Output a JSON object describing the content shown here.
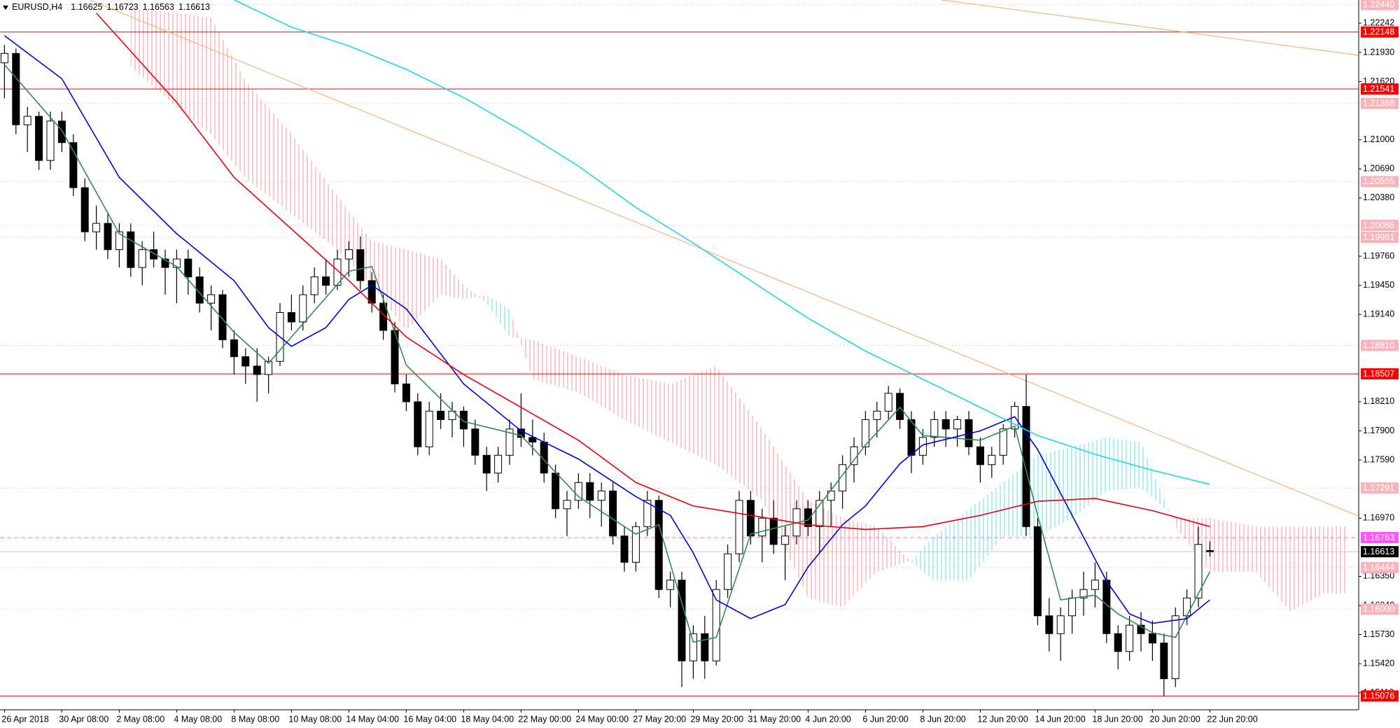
{
  "chart_data": {
    "type": "candlestick",
    "title": "EURUSD,H4",
    "ylim": [
      1.14929,
      1.22489
    ],
    "yticks": [
      1.22242,
      {
        "value": 1.2193,
        "label": "1.21930"
      },
      {
        "value": 1.2162,
        "label": "1.21620"
      },
      {
        "value": 1.21,
        "label": "1.21000"
      },
      {
        "value": 1.2069,
        "label": "1.20690"
      },
      {
        "value": 1.2038,
        "label": "1.20380"
      },
      {
        "value": 1.1976,
        "label": "1.19760"
      },
      {
        "value": 1.1945,
        "label": "1.19450"
      },
      {
        "value": 1.1914,
        "label": "1.19140"
      },
      {
        "value": 1.1821,
        "label": "1.18210"
      },
      {
        "value": 1.179,
        "label": "1.17900"
      },
      {
        "value": 1.1759,
        "label": "1.17590"
      },
      {
        "value": 1.1697,
        "label": "1.16970"
      },
      {
        "value": 1.1635,
        "label": "1.16350"
      },
      {
        "value": 1.1604,
        "label": "1.16040"
      },
      {
        "value": 1.1573,
        "label": "1.15730"
      },
      {
        "value": 1.1542,
        "label": "1.15420"
      },
      {
        "value": 1.1511,
        "label": "1.15110"
      }
    ],
    "categories": [
      "26 Apr 2018",
      null,
      null,
      null,
      null,
      "30 Apr 08:00",
      null,
      null,
      null,
      null,
      "2 May 08:00",
      null,
      null,
      null,
      null,
      "4 May 08:00",
      null,
      null,
      null,
      null,
      "8 May 08:00",
      null,
      null,
      null,
      null,
      "10 May 08:00",
      null,
      null,
      null,
      null,
      "14 May 04:00",
      null,
      null,
      null,
      null,
      "16 May 04:00",
      null,
      null,
      null,
      null,
      "18 May 04:00",
      null,
      null,
      null,
      null,
      "22 May 00:00",
      null,
      null,
      null,
      null,
      "24 May 00:00",
      null,
      null,
      null,
      null,
      "27 May 20:00",
      null,
      null,
      null,
      null,
      "29 May 20:00",
      null,
      null,
      null,
      null,
      "31 May 20:00",
      null,
      null,
      null,
      null,
      "4 Jun 20:00",
      null,
      null,
      null,
      null,
      "6 Jun 20:00",
      null,
      null,
      null,
      null,
      "8 Jun 20:00",
      null,
      null,
      null,
      null,
      "12 Jun 20:00",
      null,
      null,
      null,
      null,
      "14 Jun 20:00",
      null,
      null,
      null,
      null,
      "18 Jun 20:00",
      null,
      null,
      null,
      null,
      "20 Jun 20:00",
      null,
      null,
      null,
      null,
      "22 Jun 20:00"
    ],
    "candles": [
      [
        1.2182,
        1.2201,
        1.2144,
        1.2192
      ],
      [
        1.2192,
        1.2197,
        1.2106,
        1.2116
      ],
      [
        1.2116,
        1.2135,
        1.2087,
        1.2125
      ],
      [
        1.2125,
        1.213,
        1.2068,
        1.2078
      ],
      [
        1.2078,
        1.213,
        1.2068,
        1.212
      ],
      [
        1.212,
        1.213,
        1.2087,
        1.2097
      ],
      [
        1.2097,
        1.2106,
        1.204,
        1.2049
      ],
      [
        1.2049,
        1.2059,
        1.1992,
        1.2002
      ],
      [
        1.2002,
        1.203,
        1.1983,
        1.2011
      ],
      [
        1.2011,
        1.2021,
        1.1973,
        1.1983
      ],
      [
        1.1983,
        1.2011,
        1.1964,
        1.2002
      ],
      [
        1.2002,
        1.2011,
        1.1954,
        1.1964
      ],
      [
        1.1964,
        1.1992,
        1.1945,
        1.1983
      ],
      [
        1.1983,
        1.2002,
        1.1964,
        1.1973
      ],
      [
        1.1973,
        1.1983,
        1.1935,
        1.1964
      ],
      [
        1.1964,
        1.1983,
        1.1926,
        1.1973
      ],
      [
        1.1973,
        1.1983,
        1.1935,
        1.1954
      ],
      [
        1.1954,
        1.1964,
        1.1916,
        1.1926
      ],
      [
        1.1926,
        1.1945,
        1.1897,
        1.1935
      ],
      [
        1.1935,
        1.194,
        1.1878,
        1.1887
      ],
      [
        1.1887,
        1.1897,
        1.185,
        1.1869
      ],
      [
        1.1869,
        1.1878,
        1.184,
        1.1859
      ],
      [
        1.1859,
        1.1878,
        1.1821,
        1.185
      ],
      [
        1.185,
        1.1869,
        1.183,
        1.1864
      ],
      [
        1.1864,
        1.1926,
        1.1859,
        1.1916
      ],
      [
        1.1916,
        1.1935,
        1.1897,
        1.1906
      ],
      [
        1.1906,
        1.1945,
        1.1897,
        1.1935
      ],
      [
        1.1935,
        1.1964,
        1.1926,
        1.1954
      ],
      [
        1.1954,
        1.1973,
        1.1935,
        1.1945
      ],
      [
        1.1945,
        1.1983,
        1.194,
        1.1973
      ],
      [
        1.1973,
        1.1992,
        1.1954,
        1.1983
      ],
      [
        1.1983,
        1.1997,
        1.194,
        1.195
      ],
      [
        1.195,
        1.1959,
        1.1916,
        1.1926
      ],
      [
        1.1926,
        1.1935,
        1.1887,
        1.1897
      ],
      [
        1.1897,
        1.1906,
        1.1831,
        1.184
      ],
      [
        1.184,
        1.185,
        1.1811,
        1.1821
      ],
      [
        1.1821,
        1.183,
        1.1764,
        1.1773
      ],
      [
        1.1773,
        1.1821,
        1.1764,
        1.1811
      ],
      [
        1.1811,
        1.183,
        1.1792,
        1.1802
      ],
      [
        1.1802,
        1.1821,
        1.1783,
        1.1811
      ],
      [
        1.1811,
        1.1816,
        1.1773,
        1.1792
      ],
      [
        1.1792,
        1.1802,
        1.1754,
        1.1764
      ],
      [
        1.1764,
        1.1773,
        1.1726,
        1.1745
      ],
      [
        1.1745,
        1.1773,
        1.1735,
        1.1764
      ],
      [
        1.1764,
        1.1802,
        1.1754,
        1.1792
      ],
      [
        1.1792,
        1.183,
        1.1773,
        1.1783
      ],
      [
        1.1783,
        1.1802,
        1.1764,
        1.1778
      ],
      [
        1.1778,
        1.1788,
        1.1735,
        1.1745
      ],
      [
        1.1745,
        1.1754,
        1.1697,
        1.1707
      ],
      [
        1.1707,
        1.1726,
        1.1678,
        1.1716
      ],
      [
        1.1716,
        1.1745,
        1.1707,
        1.1735
      ],
      [
        1.1735,
        1.1745,
        1.1697,
        1.1716
      ],
      [
        1.1716,
        1.1735,
        1.1688,
        1.1726
      ],
      [
        1.1726,
        1.1735,
        1.1669,
        1.1678
      ],
      [
        1.1678,
        1.1688,
        1.164,
        1.165
      ],
      [
        1.165,
        1.1693,
        1.164,
        1.1688
      ],
      [
        1.1688,
        1.1726,
        1.1678,
        1.1716
      ],
      [
        1.1716,
        1.1721,
        1.1612,
        1.1621
      ],
      [
        1.1621,
        1.164,
        1.1602,
        1.1631
      ],
      [
        1.1631,
        1.164,
        1.1517,
        1.1545
      ],
      [
        1.1545,
        1.1583,
        1.1526,
        1.1574
      ],
      [
        1.1574,
        1.1593,
        1.1526,
        1.1545
      ],
      [
        1.1545,
        1.1631,
        1.154,
        1.1621
      ],
      [
        1.1621,
        1.1669,
        1.1612,
        1.1659
      ],
      [
        1.1659,
        1.1726,
        1.165,
        1.1716
      ],
      [
        1.1716,
        1.1726,
        1.1669,
        1.1678
      ],
      [
        1.1678,
        1.1707,
        1.165,
        1.1697
      ],
      [
        1.1697,
        1.1716,
        1.1659,
        1.1669
      ],
      [
        1.1669,
        1.1688,
        1.1631,
        1.1678
      ],
      [
        1.1678,
        1.1716,
        1.1669,
        1.1707
      ],
      [
        1.1707,
        1.1716,
        1.1678,
        1.1688
      ],
      [
        1.1688,
        1.1726,
        1.1659,
        1.1716
      ],
      [
        1.1716,
        1.1735,
        1.1688,
        1.1726
      ],
      [
        1.1726,
        1.1764,
        1.1707,
        1.1754
      ],
      [
        1.1754,
        1.1783,
        1.1735,
        1.1773
      ],
      [
        1.1773,
        1.1811,
        1.1764,
        1.1802
      ],
      [
        1.1802,
        1.1821,
        1.1783,
        1.1811
      ],
      [
        1.1811,
        1.1838,
        1.1802,
        1.183
      ],
      [
        1.183,
        1.1835,
        1.1792,
        1.1802
      ],
      [
        1.1802,
        1.1811,
        1.1745,
        1.1764
      ],
      [
        1.1764,
        1.1792,
        1.1754,
        1.1783
      ],
      [
        1.1783,
        1.1811,
        1.1773,
        1.1802
      ],
      [
        1.1802,
        1.1811,
        1.1773,
        1.1792
      ],
      [
        1.1792,
        1.1806,
        1.1773,
        1.1802
      ],
      [
        1.1802,
        1.1811,
        1.1764,
        1.1773
      ],
      [
        1.1773,
        1.1783,
        1.1735,
        1.1754
      ],
      [
        1.1754,
        1.1773,
        1.174,
        1.1764
      ],
      [
        1.1764,
        1.1797,
        1.1754,
        1.1792
      ],
      [
        1.1792,
        1.1821,
        1.1783,
        1.1816
      ],
      [
        1.1816,
        1.185,
        1.1678,
        1.1688
      ],
      [
        1.1688,
        1.1697,
        1.1583,
        1.1593
      ],
      [
        1.1593,
        1.1612,
        1.1555,
        1.1574
      ],
      [
        1.1574,
        1.1602,
        1.1545,
        1.1593
      ],
      [
        1.1593,
        1.1621,
        1.1574,
        1.1612
      ],
      [
        1.1612,
        1.164,
        1.1593,
        1.1621
      ],
      [
        1.1621,
        1.165,
        1.1602,
        1.1631
      ],
      [
        1.1631,
        1.164,
        1.1564,
        1.1574
      ],
      [
        1.1574,
        1.1583,
        1.1536,
        1.1555
      ],
      [
        1.1555,
        1.1593,
        1.1545,
        1.1583
      ],
      [
        1.1583,
        1.1597,
        1.1555,
        1.1574
      ],
      [
        1.1574,
        1.1588,
        1.1545,
        1.1564
      ],
      [
        1.1564,
        1.1574,
        1.1507,
        1.1526
      ],
      [
        1.1526,
        1.1602,
        1.1517,
        1.1593
      ],
      [
        1.1593,
        1.1621,
        1.1583,
        1.1612
      ],
      [
        1.1612,
        1.1688,
        1.1602,
        1.1669
      ],
      [
        1.16625,
        1.16723,
        1.16563,
        1.16613
      ]
    ],
    "lines": [
      {
        "color": "#2e8b57",
        "x": [
          0,
          5,
          10,
          15,
          20,
          23,
          25,
          30,
          32,
          35,
          40,
          45,
          50,
          55,
          57,
          60,
          62,
          65,
          70,
          75,
          78,
          80,
          85,
          88,
          90,
          92,
          95,
          97,
          100,
          102,
          105
        ],
        "values": [
          1.218,
          1.211,
          1.2,
          1.1965,
          1.1895,
          1.1862,
          1.189,
          1.196,
          1.1965,
          1.186,
          1.18,
          1.1785,
          1.172,
          1.168,
          1.169,
          1.1565,
          1.157,
          1.168,
          1.1695,
          1.1775,
          1.1815,
          1.1785,
          1.178,
          1.1795,
          1.17,
          1.161,
          1.1615,
          1.1595,
          1.1575,
          1.157,
          1.164
        ]
      },
      {
        "color": "#0000dd",
        "x": [
          0,
          5,
          10,
          15,
          20,
          23,
          25,
          28,
          30,
          32,
          35,
          40,
          45,
          50,
          55,
          58,
          60,
          62,
          65,
          68,
          70,
          73,
          75,
          78,
          80,
          85,
          88,
          90,
          93,
          96,
          98,
          100,
          103,
          105
        ],
        "values": [
          1.2211,
          1.2165,
          1.206,
          1.2,
          1.195,
          1.19,
          1.188,
          1.19,
          1.193,
          1.1945,
          1.192,
          1.184,
          1.179,
          1.176,
          1.172,
          1.17,
          1.166,
          1.161,
          1.159,
          1.1605,
          1.1645,
          1.169,
          1.171,
          1.1755,
          1.1775,
          1.179,
          1.1805,
          1.177,
          1.17,
          1.163,
          1.1595,
          1.1585,
          1.159,
          1.161
        ]
      },
      {
        "color": "#e8000b",
        "x": [
          8,
          15,
          20,
          25,
          30,
          35,
          40,
          45,
          50,
          55,
          60,
          65,
          70,
          75,
          80,
          85,
          90,
          95,
          100,
          105
        ],
        "values": [
          1.2235,
          1.214,
          1.206,
          1.2005,
          1.195,
          1.189,
          1.185,
          1.1815,
          1.178,
          1.1735,
          1.171,
          1.17,
          1.169,
          1.1685,
          1.1688,
          1.17,
          1.1715,
          1.1718,
          1.1705,
          1.1688
        ]
      },
      {
        "color": "#1fd5e6",
        "x": [
          20,
          25,
          30,
          35,
          40,
          45,
          50,
          55,
          60,
          65,
          70,
          75,
          80,
          85,
          90,
          95,
          100,
          105
        ],
        "values": [
          1.2249,
          1.222,
          1.22,
          1.2175,
          1.2145,
          1.211,
          1.2072,
          1.2028,
          1.199,
          1.195,
          1.191,
          1.1875,
          1.1845,
          1.1815,
          1.1785,
          1.1765,
          1.1748,
          1.1733
        ]
      }
    ],
    "trendlines": [
      {
        "color": "#f7b27a",
        "x": [
          7.4,
          118
        ],
        "values": [
          1.2249,
          1.1699
        ]
      },
      {
        "color": "#f7b27a",
        "x": [
          81.6,
          118
        ],
        "values": [
          1.2249,
          1.219
        ]
      }
    ],
    "cloud": {
      "color_up": "#7ee3ef",
      "color_down": "#f5a3a8",
      "x": [
        11,
        15,
        18,
        21,
        25,
        29,
        32,
        35,
        38,
        40,
        42,
        44,
        46,
        50,
        54,
        58,
        62,
        66,
        70,
        73,
        76,
        79,
        81,
        84,
        87,
        90,
        93,
        96,
        99,
        102,
        105,
        109,
        112,
        115,
        116.8
      ],
      "span_a": [
        1.2178,
        1.2135,
        1.2106,
        1.2059,
        1.2021,
        1.1983,
        1.1945,
        1.1897,
        1.1935,
        1.193,
        1.1935,
        1.192,
        1.1845,
        1.1831,
        1.1802,
        1.1778,
        1.1754,
        1.1716,
        1.1612,
        1.1602,
        1.164,
        1.1652,
        1.1678,
        1.1707,
        1.1735,
        1.1764,
        1.1773,
        1.1783,
        1.1778,
        1.1688,
        1.164,
        1.164,
        1.1598,
        1.1617,
        1.1617
      ],
      "span_b": [
        1.224,
        1.2235,
        1.223,
        1.2163,
        1.2106,
        1.204,
        1.1992,
        1.1983,
        1.1973,
        1.1945,
        1.1926,
        1.189,
        1.1887,
        1.1869,
        1.185,
        1.184,
        1.1859,
        1.1792,
        1.1716,
        1.1697,
        1.1688,
        1.165,
        1.1631,
        1.1631,
        1.1678,
        1.1678,
        1.1697,
        1.1726,
        1.173,
        1.1697,
        1.1697,
        1.1688,
        1.1688,
        1.1688,
        1.1688
      ]
    },
    "levels": [
      {
        "value": 1.2244,
        "label": "1.22440",
        "color": "#f7c6ca",
        "box": "#f9b3b9",
        "style": "dotted"
      },
      {
        "value": 1.22148,
        "color": "#ff0000",
        "box": "#ff0000",
        "style": "solid"
      },
      {
        "value": 1.21541,
        "color": "#ff0000",
        "box": "#ff0000",
        "style": "solid"
      },
      {
        "value": 1.21388,
        "color": "#f7c6ca",
        "box": "#f9b3b9",
        "style": "dotted"
      },
      {
        "value": 1.20555,
        "color": "#f7c6ca",
        "box": "#f9b3b9",
        "style": "dotted"
      },
      {
        "value": 1.20088,
        "color": "#f7c6ca",
        "box": "#f9b3b9",
        "style": "dotted"
      },
      {
        "value": 1.19961,
        "color": "#f7c6ca",
        "box": "#f9b3b9",
        "style": "dotted"
      },
      {
        "value": 1.1881,
        "label": "1.18810",
        "color": "#f7c6ca",
        "box": "#f9b3b9",
        "style": "dotted"
      },
      {
        "value": 1.18507,
        "color": "#ff0000",
        "box": "#ff0000",
        "style": "solid"
      },
      {
        "value": 1.17291,
        "color": "#f7c6ca",
        "box": "#f9b3b9",
        "style": "dotted"
      },
      {
        "value": 1.16763,
        "color": "#ff66ff",
        "box": "#ff55ff",
        "style": "dashed"
      },
      {
        "value": 1.16613,
        "color": "#c8c8c8",
        "box": "#000000",
        "style": "solid"
      },
      {
        "value": 1.16444,
        "color": "#f7c6ca",
        "box": "#f9b3b9",
        "style": "dotted"
      },
      {
        "value": 1.16,
        "label": "1.16000",
        "color": "#f7c6ca",
        "box": "#f9b3b9",
        "style": "dotted"
      },
      {
        "value": 1.15076,
        "color": "#ff0000",
        "box": "#ff0000",
        "style": "solid"
      }
    ]
  }
}
